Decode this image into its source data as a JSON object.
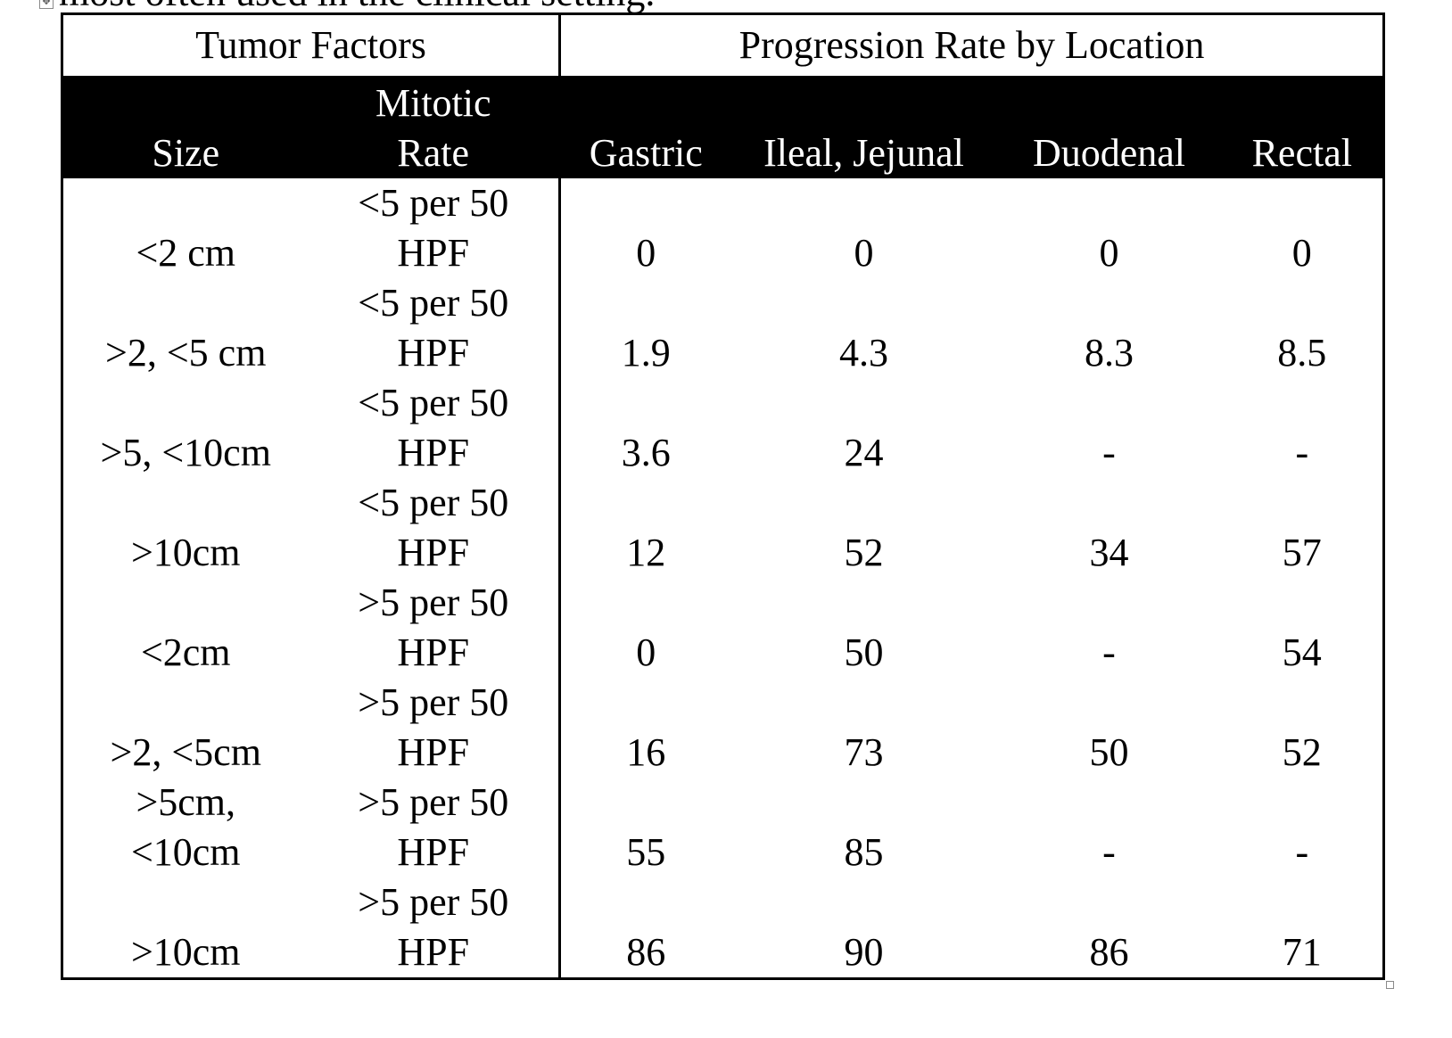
{
  "caption_fragment": "most often used in the clinical setting.",
  "headers": {
    "group_left": "Tumor Factors",
    "group_right": "Progression Rate by Location",
    "size": "Size",
    "mitotic_line1": "Mitotic",
    "mitotic_line2": "Rate",
    "gastric": "Gastric",
    "ileal_jejunal": "Ileal, Jejunal",
    "duodenal": "Duodenal",
    "rectal": "Rectal"
  },
  "rows": [
    {
      "size_l1": "",
      "size_l2": "<2 cm",
      "mit_l1": "<5 per 50",
      "mit_l2": "HPF",
      "gastric": "0",
      "ileal_jejunal": "0",
      "duodenal": "0",
      "rectal": "0"
    },
    {
      "size_l1": "",
      "size_l2": ">2, <5 cm",
      "mit_l1": "<5 per 50",
      "mit_l2": "HPF",
      "gastric": "1.9",
      "ileal_jejunal": "4.3",
      "duodenal": "8.3",
      "rectal": "8.5"
    },
    {
      "size_l1": "",
      "size_l2": ">5, <10cm",
      "mit_l1": "<5 per 50",
      "mit_l2": "HPF",
      "gastric": "3.6",
      "ileal_jejunal": "24",
      "duodenal": "-",
      "rectal": "-"
    },
    {
      "size_l1": "",
      "size_l2": ">10cm",
      "mit_l1": "<5 per 50",
      "mit_l2": "HPF",
      "gastric": "12",
      "ileal_jejunal": "52",
      "duodenal": "34",
      "rectal": "57"
    },
    {
      "size_l1": "",
      "size_l2": "<2cm",
      "mit_l1": ">5 per 50",
      "mit_l2": "HPF",
      "gastric": "0",
      "ileal_jejunal": "50",
      "duodenal": "-",
      "rectal": "54"
    },
    {
      "size_l1": "",
      "size_l2": ">2, <5cm",
      "mit_l1": ">5 per 50",
      "mit_l2": "HPF",
      "gastric": "16",
      "ileal_jejunal": "73",
      "duodenal": "50",
      "rectal": "52"
    },
    {
      "size_l1": ">5cm,",
      "size_l2": "<10cm",
      "mit_l1": ">5 per 50",
      "mit_l2": "HPF",
      "gastric": "55",
      "ileal_jejunal": "85",
      "duodenal": "-",
      "rectal": "-"
    },
    {
      "size_l1": "",
      "size_l2": ">10cm",
      "mit_l1": ">5 per 50",
      "mit_l2": "HPF",
      "gastric": "86",
      "ileal_jejunal": "90",
      "duodenal": "86",
      "rectal": "71"
    }
  ]
}
